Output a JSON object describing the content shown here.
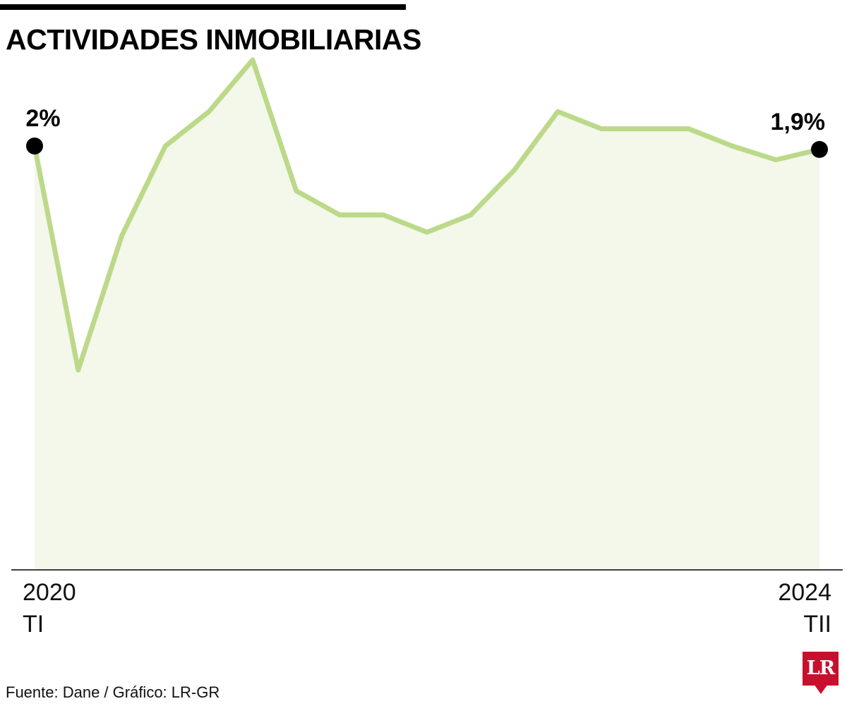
{
  "header": {
    "title": "ACTIVIDADES INMOBILIARIAS"
  },
  "chart_data": {
    "type": "area",
    "title": "ACTIVIDADES INMOBILIARIAS",
    "xlabel": "",
    "ylabel": "",
    "x_start": {
      "year": "2020",
      "quarter": "TI"
    },
    "x_end": {
      "year": "2024",
      "quarter": "TII"
    },
    "y_unit": "%",
    "ylim": [
      -10.3,
      4.6
    ],
    "grid": false,
    "legend": "none",
    "series": [
      {
        "values": [
          2.0,
          -4.5,
          -0.6,
          2.0,
          3.0,
          4.5,
          0.7,
          0.0,
          0.0,
          -0.5,
          0.0,
          1.3,
          3.0,
          2.5,
          2.5,
          2.5,
          2.0,
          1.6,
          1.9
        ]
      }
    ],
    "annotations": [
      {
        "index": 0,
        "label": "2%"
      },
      {
        "index": 18,
        "label": "1,9%"
      }
    ],
    "colors": {
      "line": "#bcd98a",
      "fill": "#f3f8ea",
      "marker": "#000000",
      "axis": "#000000"
    }
  },
  "footer": {
    "source": "Fuente: Dane / Gráfico: LR-GR",
    "logo_text": "LR"
  }
}
